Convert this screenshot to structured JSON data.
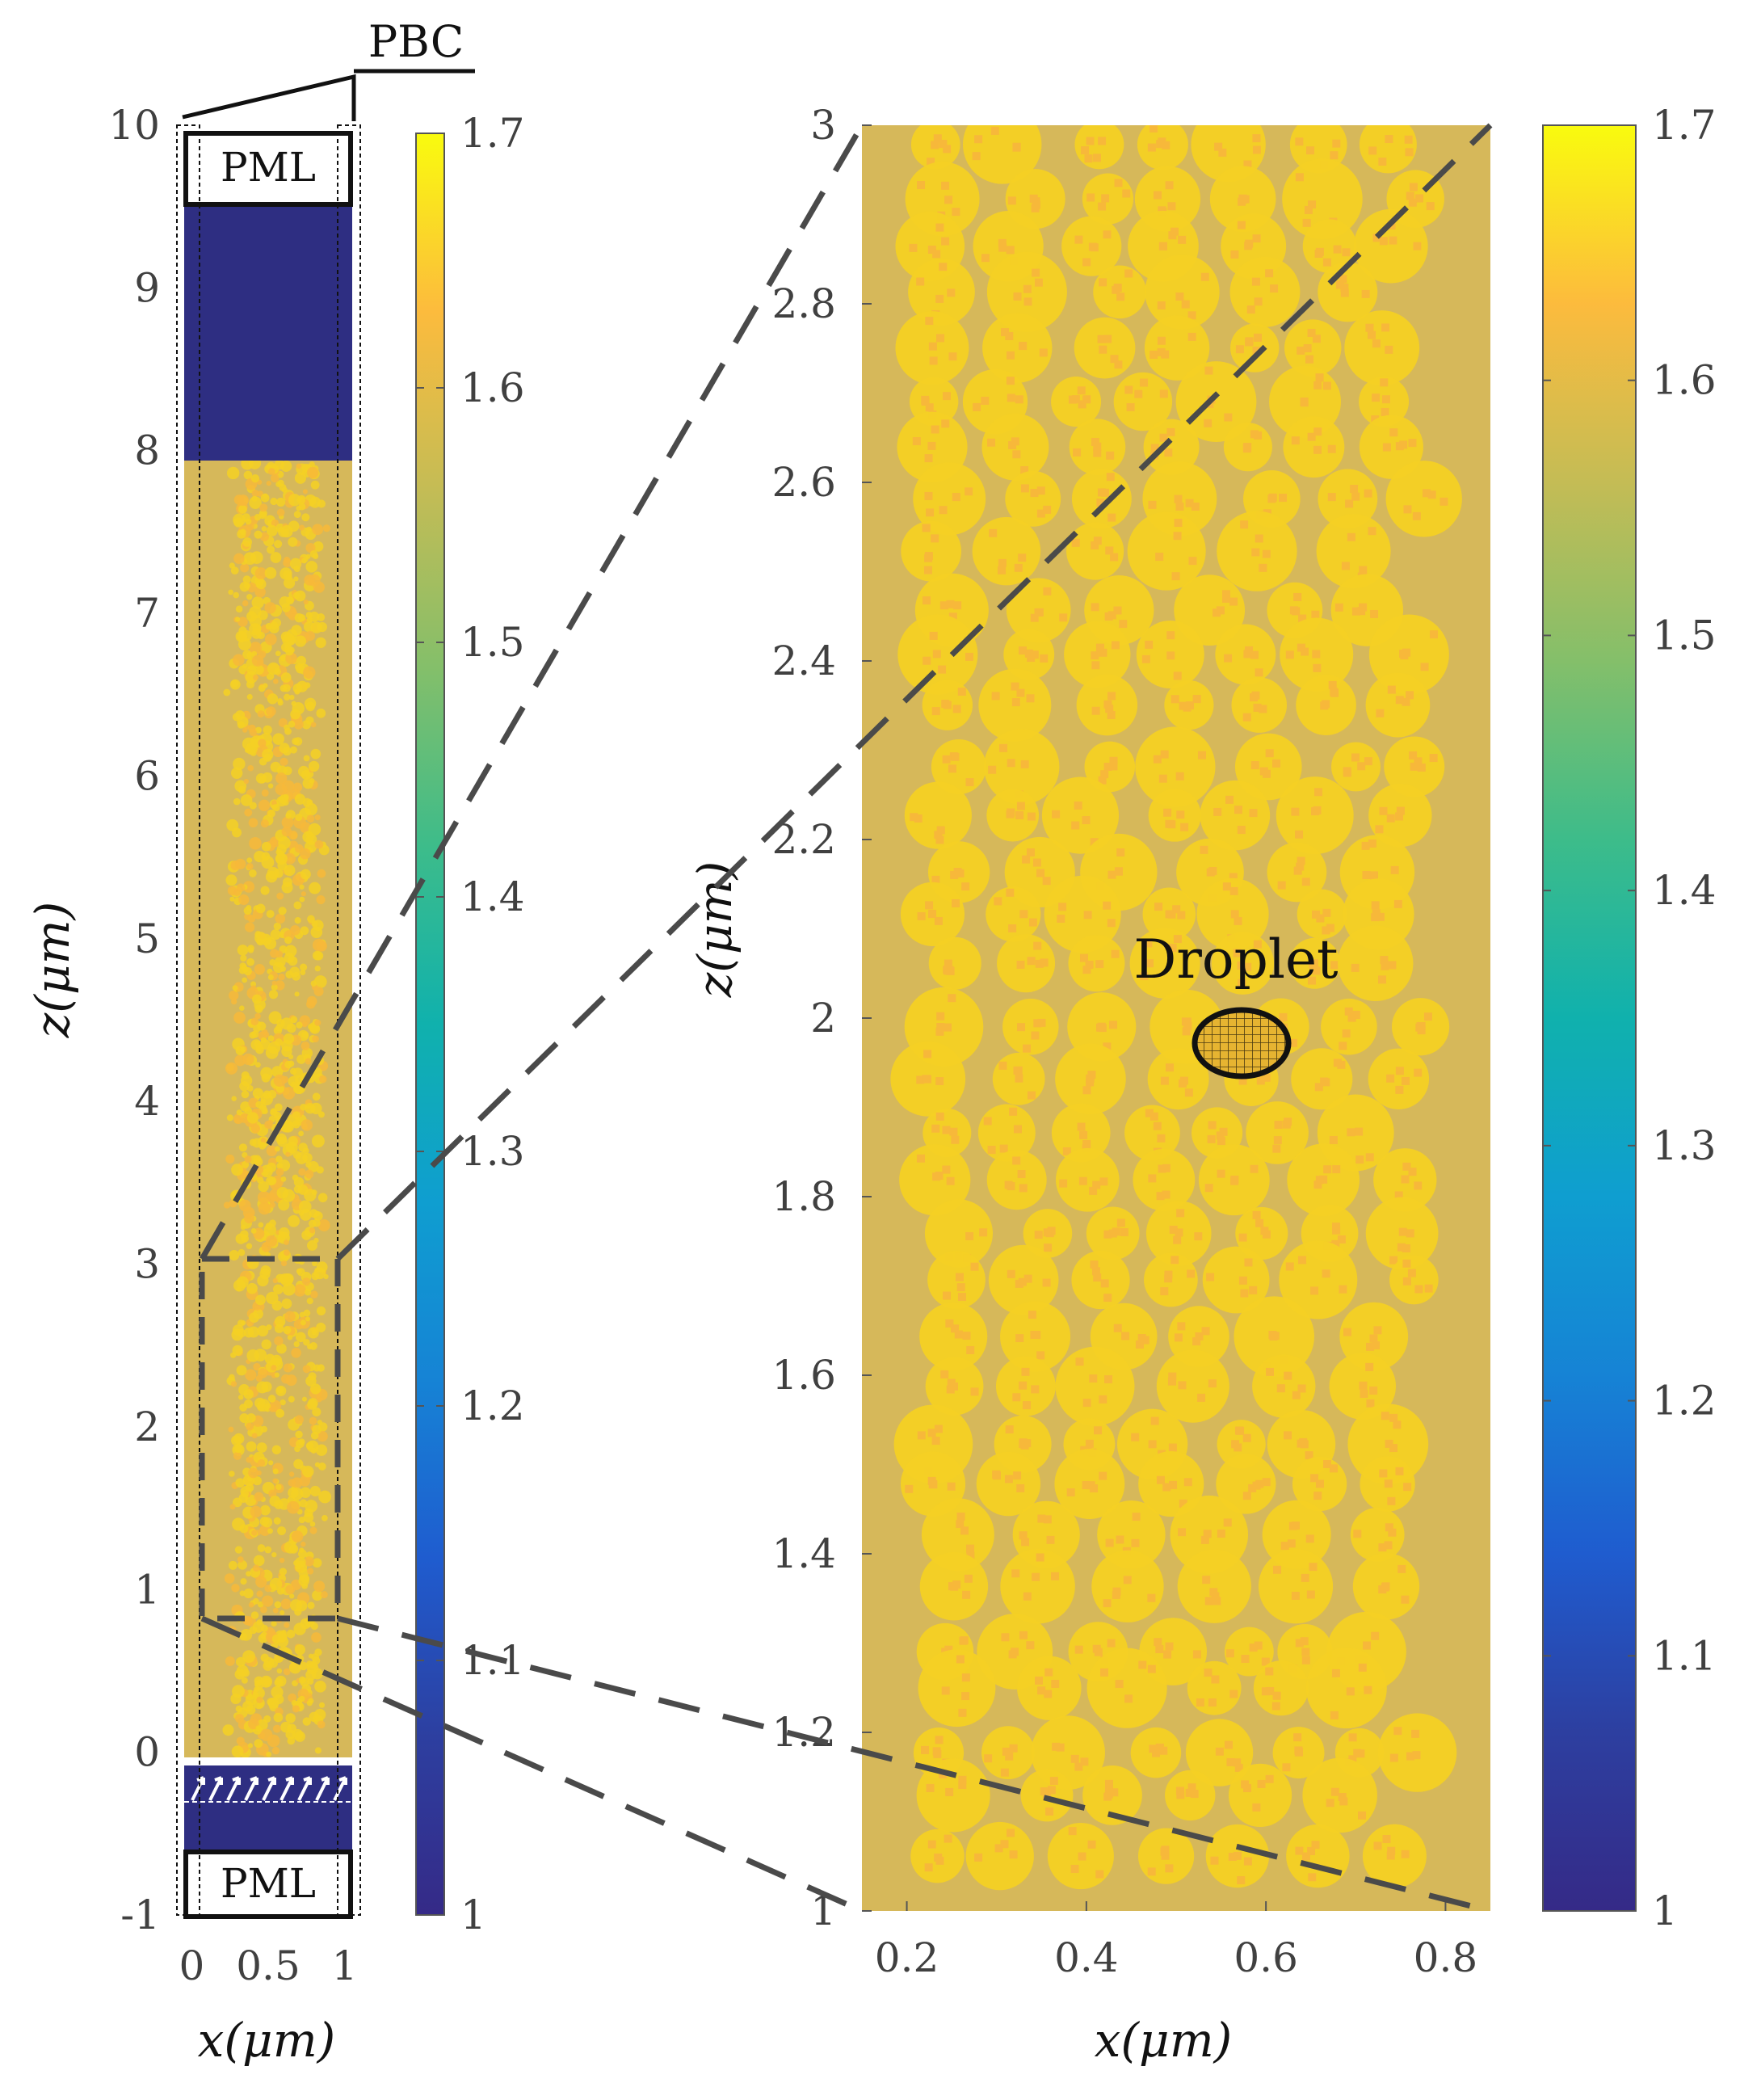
{
  "palette": {
    "background": "#d6b85a",
    "droplet_fill": "#f4d024",
    "droplet_speck": "#f7b83a",
    "air": "#2e2e82",
    "dash": "#4a4a4a",
    "tick_text": "#404040",
    "annotation": "#111111"
  },
  "annotations": {
    "pbc": "PBC",
    "pml_top": "PML",
    "pml_bottom": "PML",
    "droplet": "Droplet"
  },
  "chart_data": [
    {
      "type": "heatmap",
      "panel": "left",
      "xlabel": "x(μm)",
      "ylabel": "z(μm)",
      "xlim": [
        -0.05,
        1.05
      ],
      "ylim": [
        -1,
        10
      ],
      "xticks": [
        "0",
        "0.5",
        "1"
      ],
      "yticks": [
        "-1",
        "0",
        "1",
        "2",
        "3",
        "4",
        "5",
        "6",
        "7",
        "8",
        "9",
        "10"
      ],
      "layers": [
        {
          "z_range": [
            -1,
            -0.55
          ],
          "region": "PML"
        },
        {
          "z_range": [
            -0.55,
            0
          ],
          "value": 1.0
        },
        {
          "z_range": [
            0,
            8
          ],
          "value": 1.5,
          "droplet_value": 1.65
        },
        {
          "z_range": [
            8,
            9.55
          ],
          "value": 1.0
        },
        {
          "z_range": [
            9.55,
            10
          ],
          "region": "PML"
        }
      ],
      "source_row_z": -0.25,
      "zoom_box": {
        "x": [
          0.05,
          0.95
        ],
        "z": [
          0.85,
          3.1
        ]
      },
      "colorbar": {
        "min": 1,
        "max": 1.7,
        "ticks": [
          "1",
          "1.1",
          "1.2",
          "1.3",
          "1.4",
          "1.5",
          "1.6",
          "1.7"
        ]
      }
    },
    {
      "type": "heatmap",
      "panel": "right",
      "xlabel": "x(μm)",
      "ylabel": "z(μm)",
      "xlim": [
        0.15,
        0.85
      ],
      "ylim": [
        1,
        3
      ],
      "xticks": [
        "0.2",
        "0.4",
        "0.6",
        "0.8"
      ],
      "yticks": [
        "1",
        "1.2",
        "1.4",
        "1.6",
        "1.8",
        "2",
        "2.2",
        "2.4",
        "2.6",
        "2.8",
        "3"
      ],
      "background_value": 1.5,
      "droplet_value": 1.65,
      "droplet_band_x": [
        0.25,
        0.75
      ],
      "highlighted_droplet": {
        "x": 0.57,
        "z": 1.97
      },
      "colorbar": {
        "min": 1,
        "max": 1.7,
        "ticks": [
          "1",
          "1.1",
          "1.2",
          "1.3",
          "1.4",
          "1.5",
          "1.6",
          "1.7"
        ]
      }
    }
  ]
}
